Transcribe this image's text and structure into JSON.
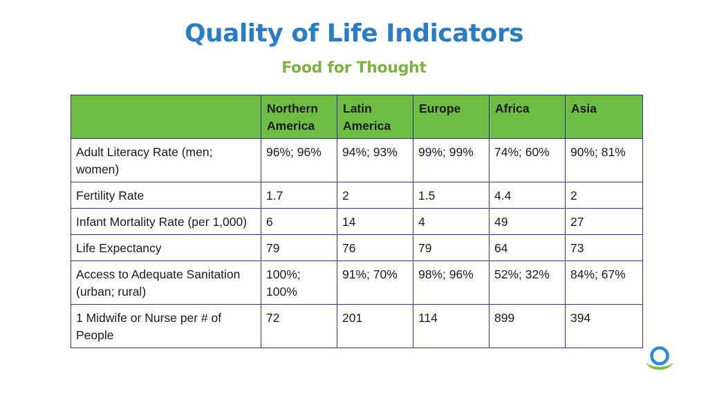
{
  "header": {
    "title": "Quality of Life Indicators",
    "subtitle": "Food for Thought"
  },
  "table": {
    "columns": [
      "",
      "Northern America",
      "Latin America",
      "Europe",
      "Africa",
      "Asia"
    ],
    "rows": [
      {
        "label": "Adult Literacy Rate (men; women)",
        "values": [
          "96%; 96%",
          "94%; 93%",
          "99%; 99%",
          "74%; 60%",
          "90%; 81%"
        ]
      },
      {
        "label": "Fertility Rate",
        "values": [
          "1.7",
          "2",
          "1.5",
          "4.4",
          "2"
        ]
      },
      {
        "label": "Infant Mortality Rate (per 1,000)",
        "values": [
          "6",
          "14",
          "4",
          "49",
          "27"
        ]
      },
      {
        "label": "Life Expectancy",
        "values": [
          "79",
          "76",
          "79",
          "64",
          "73"
        ]
      },
      {
        "label": "Access to Adequate Sanitation (urban; rural)",
        "values": [
          "100%; 100%",
          "91%; 70%",
          "98%; 96%",
          "52%; 32%",
          "84%; 67%"
        ]
      },
      {
        "label": "1 Midwife or Nurse per # of People",
        "values": [
          "72",
          "201",
          "114",
          "899",
          "394"
        ]
      }
    ]
  },
  "logo": {
    "icon": "ring-logo-icon",
    "colors": {
      "ring": "#2a8ad4",
      "swoosh": "#7cc242"
    }
  },
  "colors": {
    "title": "#2a7cc4",
    "subtitle": "#7cb342",
    "header_fill": "#6dbd45",
    "table_border": "#2e3192"
  }
}
